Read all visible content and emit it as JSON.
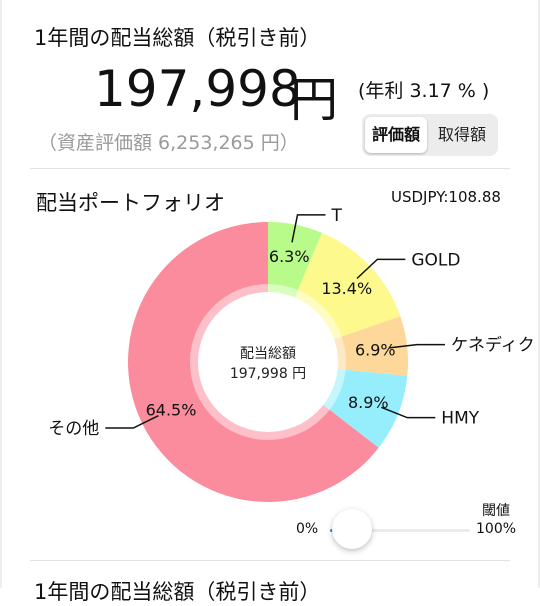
{
  "summary": {
    "title": "1年間の配当総額（税引き前）",
    "amount": "197,998",
    "currency": "円",
    "yield_text": "(年利 3.17 % )",
    "asset_value_text": "（資産評価額 6,253,265 円）",
    "toggle": {
      "options": [
        "評価額",
        "取得額"
      ],
      "selected": "評価額"
    }
  },
  "portfolio": {
    "title": "配当ポートフォリオ",
    "fx_rate": "USDJPY:108.88",
    "center_label": "配当総額",
    "center_value": "197,998 円"
  },
  "chart_data": {
    "type": "pie",
    "categories": [
      "T",
      "GOLD",
      "ケネディク",
      "HMY",
      "その他"
    ],
    "values": [
      6.3,
      13.4,
      6.9,
      8.9,
      64.5
    ],
    "labels": [
      "6.3%",
      "13.4%",
      "6.9%",
      "8.9%",
      "64.5%"
    ],
    "colors": [
      "#b9fb8a",
      "#fdf98d",
      "#fdd89a",
      "#96eefc",
      "#fb8c9d"
    ],
    "donut": true
  },
  "threshold": {
    "label": "閾値",
    "min_label": "0%",
    "max_label": "100%",
    "value": 0
  },
  "next_section": {
    "title": "1年間の配当総額（税引き前）"
  },
  "colors": {
    "accent": "#3b82f6",
    "separator": "#e2e2e2"
  }
}
